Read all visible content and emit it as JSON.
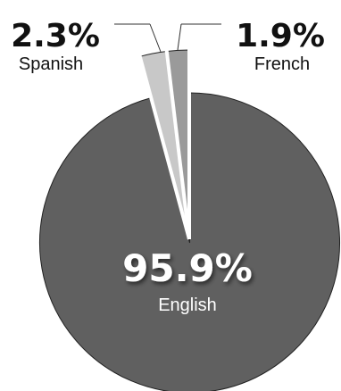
{
  "chart_data": {
    "type": "pie",
    "title": "",
    "exploded": true,
    "slices": [
      {
        "label": "English",
        "value_label": "95.9%",
        "value": 95.9,
        "color": "#606060"
      },
      {
        "label": "Spanish",
        "value_label": "2.3%",
        "value": 2.3,
        "color": "#c8c8c8"
      },
      {
        "label": "French",
        "value_label": "1.9%",
        "value": 1.9,
        "color": "#9a9a9a"
      }
    ]
  }
}
